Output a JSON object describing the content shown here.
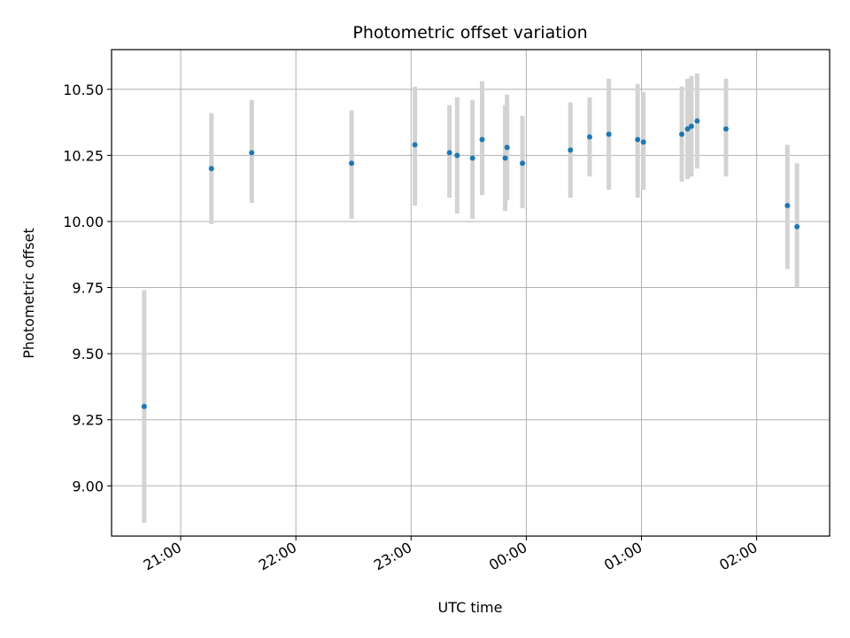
{
  "chart_data": {
    "type": "scatter",
    "title": "Photometric offset variation",
    "xlabel": "UTC time",
    "ylabel": "Photometric offset",
    "x_unit": "UTC time (HH:MM); times after midnight are on the following day",
    "x_ticks": [
      "21:00",
      "22:00",
      "23:00",
      "00:00",
      "01:00",
      "02:00"
    ],
    "y_ticks": [
      "9.00",
      "9.25",
      "9.50",
      "9.75",
      "10.00",
      "10.25",
      "10.50"
    ],
    "xlim": [
      "20:24",
      "02:38"
    ],
    "ylim": [
      8.81,
      10.65
    ],
    "grid": true,
    "marker_color": "#1f77b4",
    "errorbar_color": "#d3d3d3",
    "points": [
      {
        "x": "20:41",
        "y": 9.3,
        "lo": 8.86,
        "hi": 9.74
      },
      {
        "x": "21:16",
        "y": 10.2,
        "lo": 9.99,
        "hi": 10.41
      },
      {
        "x": "21:37",
        "y": 10.26,
        "lo": 10.07,
        "hi": 10.46
      },
      {
        "x": "22:29",
        "y": 10.22,
        "lo": 10.01,
        "hi": 10.42
      },
      {
        "x": "23:02",
        "y": 10.29,
        "lo": 10.06,
        "hi": 10.51
      },
      {
        "x": "23:20",
        "y": 10.26,
        "lo": 10.09,
        "hi": 10.44
      },
      {
        "x": "23:24",
        "y": 10.25,
        "lo": 10.03,
        "hi": 10.47
      },
      {
        "x": "23:32",
        "y": 10.24,
        "lo": 10.01,
        "hi": 10.46
      },
      {
        "x": "23:37",
        "y": 10.31,
        "lo": 10.1,
        "hi": 10.53
      },
      {
        "x": "23:49",
        "y": 10.24,
        "lo": 10.04,
        "hi": 10.44
      },
      {
        "x": "23:50",
        "y": 10.28,
        "lo": 10.08,
        "hi": 10.48
      },
      {
        "x": "23:58",
        "y": 10.22,
        "lo": 10.05,
        "hi": 10.4
      },
      {
        "x": "00:23",
        "y": 10.27,
        "lo": 10.09,
        "hi": 10.45
      },
      {
        "x": "00:33",
        "y": 10.32,
        "lo": 10.17,
        "hi": 10.47
      },
      {
        "x": "00:43",
        "y": 10.33,
        "lo": 10.12,
        "hi": 10.54
      },
      {
        "x": "00:58",
        "y": 10.31,
        "lo": 10.09,
        "hi": 10.52
      },
      {
        "x": "01:01",
        "y": 10.3,
        "lo": 10.12,
        "hi": 10.49
      },
      {
        "x": "01:21",
        "y": 10.33,
        "lo": 10.15,
        "hi": 10.51
      },
      {
        "x": "01:24",
        "y": 10.35,
        "lo": 10.16,
        "hi": 10.54
      },
      {
        "x": "01:26",
        "y": 10.36,
        "lo": 10.17,
        "hi": 10.55
      },
      {
        "x": "01:29",
        "y": 10.38,
        "lo": 10.2,
        "hi": 10.56
      },
      {
        "x": "01:44",
        "y": 10.35,
        "lo": 10.17,
        "hi": 10.54
      },
      {
        "x": "02:16",
        "y": 10.06,
        "lo": 9.82,
        "hi": 10.29
      },
      {
        "x": "02:21",
        "y": 9.98,
        "lo": 9.75,
        "hi": 10.22
      }
    ]
  }
}
